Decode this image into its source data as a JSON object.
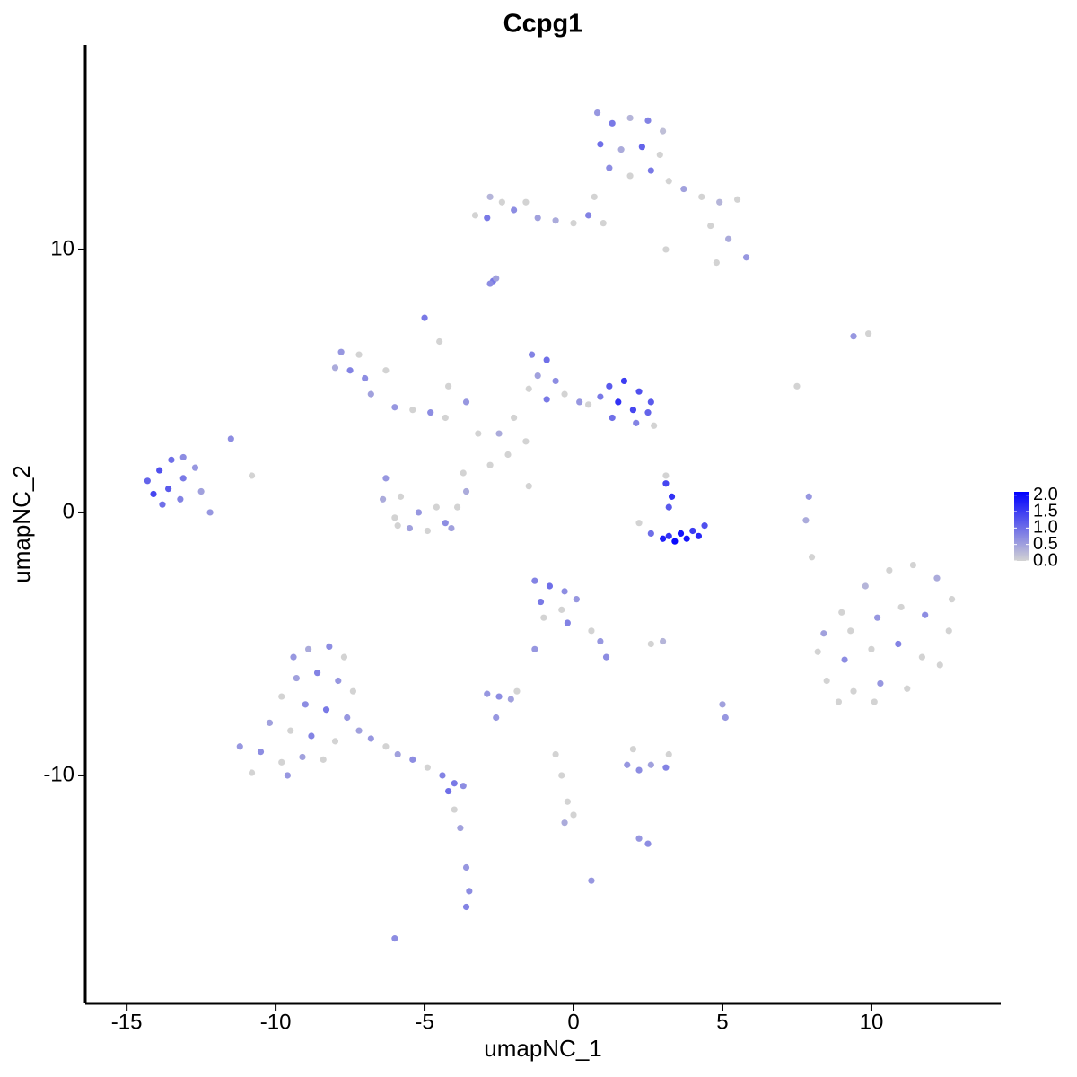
{
  "chart_data": {
    "type": "scatter",
    "title": "Ccpg1",
    "x_label": "umapNC_1",
    "y_label": "umapNC_2",
    "xlim": [
      -16.39,
      14.34
    ],
    "ylim": [
      -18.67,
      17.78
    ],
    "xticks": [
      -15,
      -10,
      -5,
      0,
      5,
      10
    ],
    "yticks": [
      -10,
      0,
      10
    ],
    "colors": [
      "#d3d3d3",
      "#0000ff"
    ],
    "colorlim": [
      0,
      2.1
    ],
    "colorticks": [
      {
        "value": 0,
        "label": "0.0"
      },
      {
        "value": 0.5,
        "label": "0.5"
      },
      {
        "value": 1,
        "label": "1.0"
      },
      {
        "value": 1.5,
        "label": "1.5"
      },
      {
        "value": 2,
        "label": "2.0"
      }
    ],
    "x": [
      0.8,
      1.3,
      1.9,
      2.5,
      3.0,
      0.9,
      1.6,
      2.3,
      2.9,
      1.2,
      1.9,
      2.6,
      3.2,
      3.7,
      4.3,
      4.9,
      5.5,
      4.6,
      5.2,
      5.8,
      4.8,
      3.1,
      -3.3,
      -2.8,
      -2.4,
      -2.9,
      -2.0,
      -1.6,
      -1.2,
      -0.6,
      0.0,
      0.5,
      1.0,
      0.7,
      -2.7,
      -2.8,
      -2.6,
      -7.8,
      -7.5,
      -8.0,
      -7.2,
      -7.0,
      -6.3,
      -6.8,
      -6.0,
      -5.4,
      -4.8,
      -4.3,
      -5.0,
      -4.5,
      -4.2,
      -3.6,
      -3.2,
      -1.4,
      -0.9,
      -1.2,
      -0.6,
      -1.5,
      -0.9,
      -0.3,
      0.2,
      -2.0,
      -2.5,
      -2.2,
      -2.8,
      -1.5,
      -1.6,
      1.2,
      1.7,
      2.2,
      1.5,
      2.0,
      2.5,
      1.3,
      2.1,
      0.9,
      2.6,
      0.5,
      2.7,
      -14.3,
      -13.9,
      -13.5,
      -13.1,
      -14.1,
      -13.6,
      -13.1,
      -12.7,
      -13.8,
      -13.2,
      -12.5,
      -12.2,
      -11.5,
      -10.8,
      -6.3,
      -6.4,
      -6.0,
      -5.5,
      -4.9,
      -4.3,
      -3.9,
      -3.6,
      -3.7,
      -5.8,
      -5.2,
      -4.6,
      -5.9,
      -4.1,
      2.2,
      2.6,
      3.0,
      3.4,
      3.8,
      4.2,
      4.4,
      3.2,
      3.6,
      4.0,
      3.1,
      3.3,
      3.2,
      3.1,
      9.0,
      9.8,
      10.6,
      11.4,
      12.2,
      12.7,
      8.4,
      9.3,
      10.2,
      11.0,
      11.8,
      12.6,
      8.2,
      9.1,
      10.0,
      10.9,
      11.7,
      12.3,
      8.5,
      9.4,
      10.3,
      11.2,
      8.9,
      10.1,
      -1.3,
      -0.8,
      -0.3,
      -1.1,
      -0.4,
      0.1,
      -1.0,
      -0.2,
      0.6,
      0.9,
      1.1,
      -1.3,
      -9.4,
      -8.9,
      -8.2,
      -7.7,
      -9.3,
      -8.6,
      -7.9,
      -7.4,
      -9.8,
      -9.0,
      -8.3,
      -7.6,
      -10.2,
      -9.5,
      -8.8,
      -8.0,
      -11.2,
      -10.5,
      -9.8,
      -9.1,
      -8.4,
      -10.8,
      -9.6,
      -7.2,
      -6.8,
      -6.3,
      -5.9,
      -5.4,
      -4.9,
      -4.4,
      -4.0,
      -3.7,
      -4.2,
      -4.0,
      -3.8,
      -3.6,
      -3.5,
      -3.6,
      -2.9,
      -2.5,
      -2.1,
      -2.6,
      -1.9,
      -0.6,
      -0.4,
      -0.2,
      0.0,
      -0.3,
      1.8,
      2.2,
      2.6,
      3.1,
      3.2,
      2.0,
      2.2,
      2.5,
      -6.0,
      0.6,
      2.6,
      3.0,
      5.0,
      5.1,
      7.9,
      7.8,
      8.0,
      9.4,
      9.9,
      7.5
    ],
    "values": [
      15.2,
      14.8,
      15.0,
      14.9,
      14.5,
      14.0,
      13.8,
      13.9,
      13.6,
      13.1,
      12.8,
      13.0,
      12.6,
      12.3,
      12.0,
      11.8,
      11.9,
      10.9,
      10.4,
      9.7,
      9.5,
      10.0,
      11.3,
      12.0,
      11.8,
      11.2,
      11.5,
      11.8,
      11.2,
      11.1,
      11.0,
      11.3,
      11.0,
      12.0,
      8.8,
      8.7,
      8.9,
      6.1,
      5.4,
      5.5,
      6.0,
      5.1,
      5.4,
      4.5,
      4.0,
      3.9,
      3.8,
      3.6,
      7.4,
      6.5,
      4.8,
      4.2,
      3.0,
      6.0,
      5.8,
      5.2,
      5.0,
      4.7,
      4.3,
      4.5,
      4.2,
      3.6,
      3.0,
      2.2,
      1.8,
      1.0,
      2.7,
      4.8,
      5.0,
      4.6,
      4.2,
      3.9,
      3.8,
      3.6,
      3.4,
      4.4,
      4.2,
      4.1,
      3.3,
      1.2,
      1.6,
      2.0,
      2.1,
      0.7,
      0.9,
      1.3,
      1.7,
      0.3,
      0.5,
      0.8,
      0.0,
      2.8,
      1.4,
      1.3,
      0.5,
      -0.2,
      -0.6,
      -0.7,
      -0.4,
      0.2,
      0.8,
      1.5,
      0.6,
      0.0,
      0.2,
      -0.5,
      -0.6,
      -0.4,
      -0.8,
      -1.0,
      -1.1,
      -1.0,
      -0.9,
      -0.5,
      -0.9,
      -0.8,
      -0.7,
      1.1,
      0.6,
      0.2,
      1.4,
      -3.8,
      -2.8,
      -2.2,
      -2.0,
      -2.5,
      -3.3,
      -4.6,
      -4.5,
      -4.0,
      -3.6,
      -3.9,
      -4.5,
      -5.3,
      -5.6,
      -5.2,
      -5.0,
      -5.5,
      -5.8,
      -6.4,
      -6.8,
      -6.5,
      -6.7,
      -7.2,
      -7.2,
      -2.6,
      -2.8,
      -3.0,
      -3.4,
      -3.7,
      -3.3,
      -4.0,
      -4.2,
      -4.5,
      -4.9,
      -5.5,
      -5.2,
      -5.5,
      -5.2,
      -5.1,
      -5.5,
      -6.3,
      -6.1,
      -6.4,
      -6.8,
      -7.0,
      -7.3,
      -7.5,
      -7.8,
      -8.0,
      -8.3,
      -8.5,
      -8.7,
      -8.9,
      -9.1,
      -9.5,
      -9.3,
      -9.4,
      -9.9,
      -10.0,
      -8.3,
      -8.6,
      -8.9,
      -9.2,
      -9.4,
      -9.7,
      -10.0,
      -10.3,
      -10.4,
      -10.6,
      -11.3,
      -12.0,
      -13.5,
      -14.4,
      -15.0,
      -6.9,
      -7.0,
      -7.1,
      -7.8,
      -6.8,
      -9.2,
      -10.0,
      -11.0,
      -11.5,
      -11.8,
      -9.6,
      -9.8,
      -9.6,
      -9.7,
      -9.2,
      -9.0,
      -12.4,
      -12.6,
      -16.2,
      -14.0,
      -5.0,
      -4.9,
      -7.3,
      -7.8,
      0.6,
      -0.3,
      -1.7,
      6.7,
      6.8,
      4.8
    ],
    "expression": [
      0.6,
      0.9,
      0.3,
      0.8,
      0.2,
      1.0,
      0.4,
      1.1,
      0.0,
      0.7,
      0.0,
      0.9,
      0.0,
      0.5,
      0.0,
      0.3,
      0.0,
      0.0,
      0.4,
      0.6,
      0.0,
      0.0,
      0.0,
      0.3,
      0.0,
      0.9,
      0.7,
      0.0,
      0.5,
      0.4,
      0.0,
      0.8,
      0.0,
      0.0,
      0.9,
      0.7,
      0.5,
      0.6,
      0.8,
      0.4,
      0.0,
      0.7,
      0.0,
      0.5,
      0.6,
      0.0,
      0.7,
      0.0,
      0.9,
      0.0,
      0.0,
      0.6,
      0.0,
      0.8,
      1.0,
      0.5,
      0.7,
      0.0,
      0.9,
      0.0,
      0.6,
      0.0,
      0.4,
      0.0,
      0.0,
      0.0,
      0.0,
      1.2,
      1.5,
      1.3,
      1.6,
      1.4,
      1.1,
      1.0,
      0.8,
      0.9,
      1.2,
      0.0,
      0.0,
      1.1,
      1.3,
      1.0,
      0.7,
      1.4,
      1.2,
      0.9,
      0.6,
      1.0,
      0.8,
      0.5,
      0.6,
      0.7,
      0.0,
      0.6,
      0.4,
      0.0,
      0.5,
      0.0,
      0.7,
      0.0,
      0.4,
      0.0,
      0.0,
      0.6,
      0.0,
      0.0,
      0.5,
      0.0,
      1.0,
      1.8,
      2.0,
      1.9,
      1.7,
      1.3,
      1.6,
      1.9,
      1.5,
      1.4,
      1.6,
      1.2,
      0.0,
      0.0,
      0.3,
      0.0,
      0.0,
      0.4,
      0.0,
      0.5,
      0.0,
      0.6,
      0.0,
      0.7,
      0.0,
      0.0,
      0.7,
      0.0,
      0.8,
      0.0,
      0.0,
      0.0,
      0.0,
      0.6,
      0.0,
      0.0,
      0.0,
      0.8,
      1.0,
      0.7,
      0.9,
      0.0,
      0.6,
      0.0,
      0.8,
      0.0,
      0.6,
      0.7,
      0.6,
      0.6,
      0.4,
      0.7,
      0.0,
      0.5,
      0.8,
      0.6,
      0.0,
      0.0,
      0.7,
      0.9,
      0.6,
      0.5,
      0.0,
      0.8,
      0.0,
      0.6,
      0.7,
      0.0,
      0.5,
      0.0,
      0.0,
      0.6,
      0.5,
      0.6,
      0.0,
      0.5,
      0.7,
      0.0,
      0.8,
      0.9,
      0.7,
      1.0,
      0.0,
      0.5,
      0.6,
      0.7,
      0.8,
      0.6,
      0.7,
      0.5,
      0.6,
      0.0,
      0.0,
      0.0,
      0.0,
      0.0,
      0.4,
      0.6,
      0.7,
      0.5,
      0.8,
      0.0,
      0.0,
      0.6,
      0.7,
      0.7,
      0.6,
      0.0,
      0.3,
      0.5,
      0.6,
      0.6,
      0.4,
      0.0,
      0.6,
      0.0,
      0.0
    ]
  }
}
